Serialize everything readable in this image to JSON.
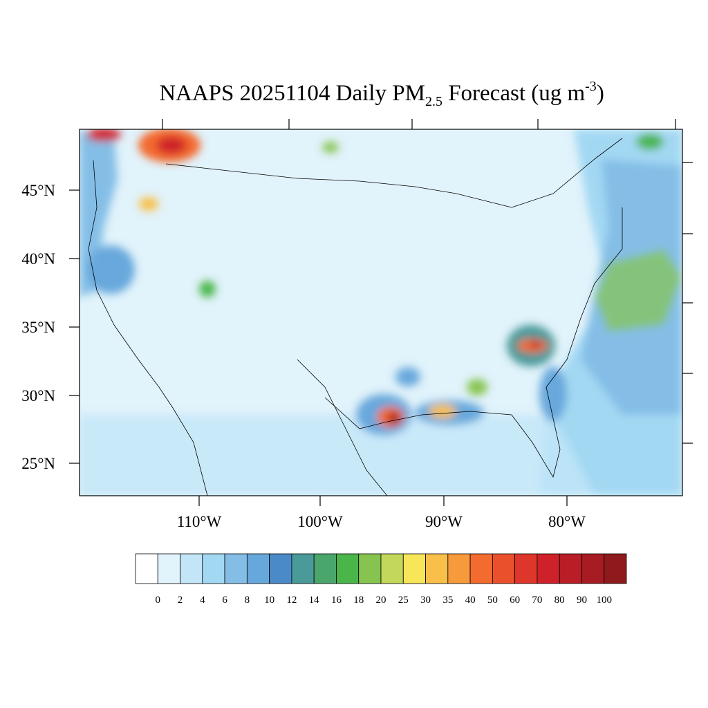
{
  "title": {
    "main": "NAAPS 20251104 Daily PM",
    "subscript": "2.5",
    "middle": " Forecast (ug m",
    "superscript": "-3",
    "end": ")"
  },
  "latitude_labels": [
    "45°N",
    "40°N",
    "35°N",
    "30°N",
    "25°N"
  ],
  "longitude_labels": [
    "110°W",
    "100°W",
    "90°W",
    "80°W"
  ],
  "colorbar": {
    "levels": [
      "0",
      "2",
      "4",
      "6",
      "8",
      "10",
      "12",
      "14",
      "16",
      "18",
      "20",
      "25",
      "30",
      "35",
      "40",
      "50",
      "60",
      "70",
      "80",
      "90",
      "100"
    ],
    "colors": [
      "#ffffff",
      "#e1f3fb",
      "#c2e6f7",
      "#a3d8f3",
      "#84bee6",
      "#67a8dc",
      "#4a8ac8",
      "#4b9a9a",
      "#4aa66a",
      "#4ab64a",
      "#86c44f",
      "#c3d75b",
      "#f7e659",
      "#f8c04a",
      "#f69a3c",
      "#f36b2e",
      "#e9502b",
      "#df362b",
      "#cf212a",
      "#b91d26",
      "#a71b22",
      "#8f1a1d"
    ]
  }
}
